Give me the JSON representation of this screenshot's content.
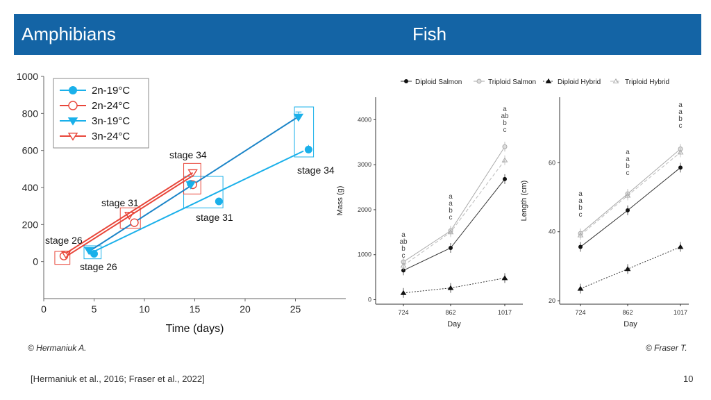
{
  "header": {
    "left_title": "Amphibians",
    "right_title": "Fish"
  },
  "credits": {
    "left": "© Hermaniuk A.",
    "right": "© Fraser T."
  },
  "footer": {
    "citation": "[Hermaniuk et al., 2016; Fraser et al., 2022]",
    "page_number": "10"
  },
  "colors": {
    "header_bg": "#1464a5",
    "blue": "#1ab0ea",
    "red": "#e8463a"
  },
  "chart_data": [
    {
      "type": "scatter",
      "xlabel": "Time (days)",
      "xlim": [
        0,
        30
      ],
      "ylim": [
        -200,
        1000
      ],
      "xticks": [
        "0",
        "5",
        "10",
        "15",
        "20",
        "25"
      ],
      "yticks": [
        "0",
        "200",
        "400",
        "600",
        "800",
        "1000"
      ],
      "legend_position": "top-left",
      "series": [
        {
          "name": "2n-19°C",
          "color": "#1ab0ea",
          "marker": "circle-filled",
          "x": [
            5,
            14.6,
            17.4,
            26.3
          ],
          "y": [
            42,
            420,
            325,
            605
          ],
          "trend": [
            [
              4.5,
              42
            ],
            [
              25.8,
              597
            ]
          ]
        },
        {
          "name": "2n-24°C",
          "color": "#e8463a",
          "marker": "circle-open",
          "x": [
            2,
            9,
            14.8
          ],
          "y": [
            30,
            210,
            415
          ],
          "trend": [
            [
              2,
              20
            ],
            [
              14.7,
              460
            ]
          ]
        },
        {
          "name": "3n-19°C",
          "color": "#1ab0ea",
          "marker": "triangle-down-filled",
          "x": [
            4.5,
            14.6,
            25.3
          ],
          "y": [
            60,
            415,
            780
          ],
          "trend": [
            [
              4.5,
              55
            ],
            [
              25.5,
              790
            ]
          ]
        },
        {
          "name": "3n-24°C",
          "color": "#e8463a",
          "marker": "triangle-down-open",
          "x": [
            2.2,
            8.5,
            14.8
          ],
          "y": [
            40,
            250,
            480
          ],
          "trend": [
            [
              2.2,
              45
            ],
            [
              14.8,
              480
            ]
          ]
        }
      ],
      "annotations": [
        "stage 26",
        "stage 26",
        "stage 31",
        "stage 31",
        "stage 34",
        "stage 34"
      ]
    },
    {
      "type": "line",
      "xlabel": "Day",
      "ylabel": "Mass (g)",
      "categories": [
        "724",
        "862",
        "1017"
      ],
      "ylim": [
        -100,
        4500
      ],
      "yticks": [
        "0",
        "1000",
        "2000",
        "3000",
        "4000"
      ],
      "legend_position": "top",
      "series": [
        {
          "name": "Diploid Salmon",
          "values": [
            650,
            1150,
            2680
          ]
        },
        {
          "name": "Triploid Salmon",
          "values": [
            840,
            1530,
            3400
          ]
        },
        {
          "name": "Diploid Hybrid",
          "values": [
            150,
            260,
            480
          ]
        },
        {
          "name": "Triploid Hybrid",
          "values": [
            760,
            1500,
            3100
          ]
        }
      ],
      "letter_groups": [
        [
          "a",
          "ab",
          "b",
          "c"
        ],
        [
          "a",
          "a",
          "b",
          "c"
        ],
        [
          "a",
          "ab",
          "b",
          "c"
        ]
      ]
    },
    {
      "type": "line",
      "xlabel": "Day",
      "ylabel": "Length (cm)",
      "categories": [
        "724",
        "862",
        "1017"
      ],
      "ylim": [
        19,
        79
      ],
      "yticks": [
        "20",
        "40",
        "60"
      ],
      "series": [
        {
          "name": "Diploid Salmon",
          "values": [
            35.6,
            46.2,
            58.6
          ]
        },
        {
          "name": "Triploid Salmon",
          "values": [
            39.5,
            51,
            64
          ]
        },
        {
          "name": "Diploid Hybrid",
          "values": [
            23.5,
            29.2,
            35.6
          ]
        },
        {
          "name": "Triploid Hybrid",
          "values": [
            39,
            50.5,
            63
          ]
        }
      ],
      "letter_groups": [
        [
          "a",
          "a",
          "b",
          "c"
        ],
        [
          "a",
          "a",
          "b",
          "c"
        ],
        [
          "a",
          "a",
          "b",
          "c"
        ]
      ]
    }
  ]
}
